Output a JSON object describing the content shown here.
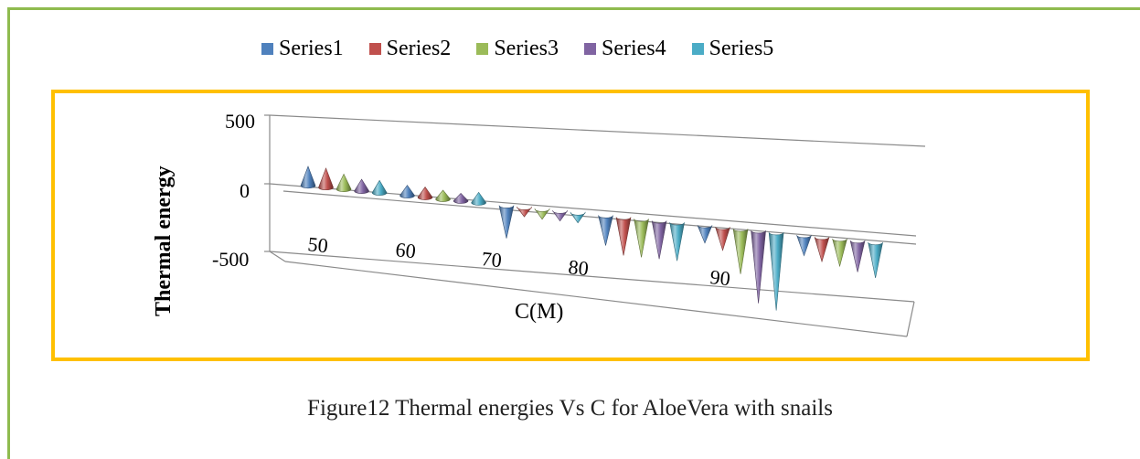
{
  "caption": "Figure12 Thermal energies Vs C for AloeVera with snails",
  "chart_data": {
    "type": "bar",
    "shape": "cone",
    "categories": [
      "50",
      "60",
      "70",
      "80",
      "90",
      ""
    ],
    "xlabel": "C(M)",
    "ylabel": "Thermal energy",
    "ylim": [
      -500,
      500
    ],
    "yticks": [
      "500",
      "0",
      "-500"
    ],
    "legend_position": "top",
    "series": [
      {
        "name": "Series1",
        "color": "#4f81bd",
        "values": [
          140,
          75,
          -240,
          -220,
          -130,
          -150
        ]
      },
      {
        "name": "Series2",
        "color": "#c0504d",
        "values": [
          140,
          75,
          -70,
          -280,
          -170,
          -180
        ]
      },
      {
        "name": "Series3",
        "color": "#9bbb59",
        "values": [
          110,
          65,
          -75,
          -280,
          -330,
          -200
        ]
      },
      {
        "name": "Series4",
        "color": "#8064a2",
        "values": [
          85,
          55,
          -75,
          -280,
          -530,
          -230
        ]
      },
      {
        "name": "Series5",
        "color": "#4bacc6",
        "values": [
          90,
          75,
          -75,
          -280,
          -570,
          -260
        ]
      }
    ]
  }
}
